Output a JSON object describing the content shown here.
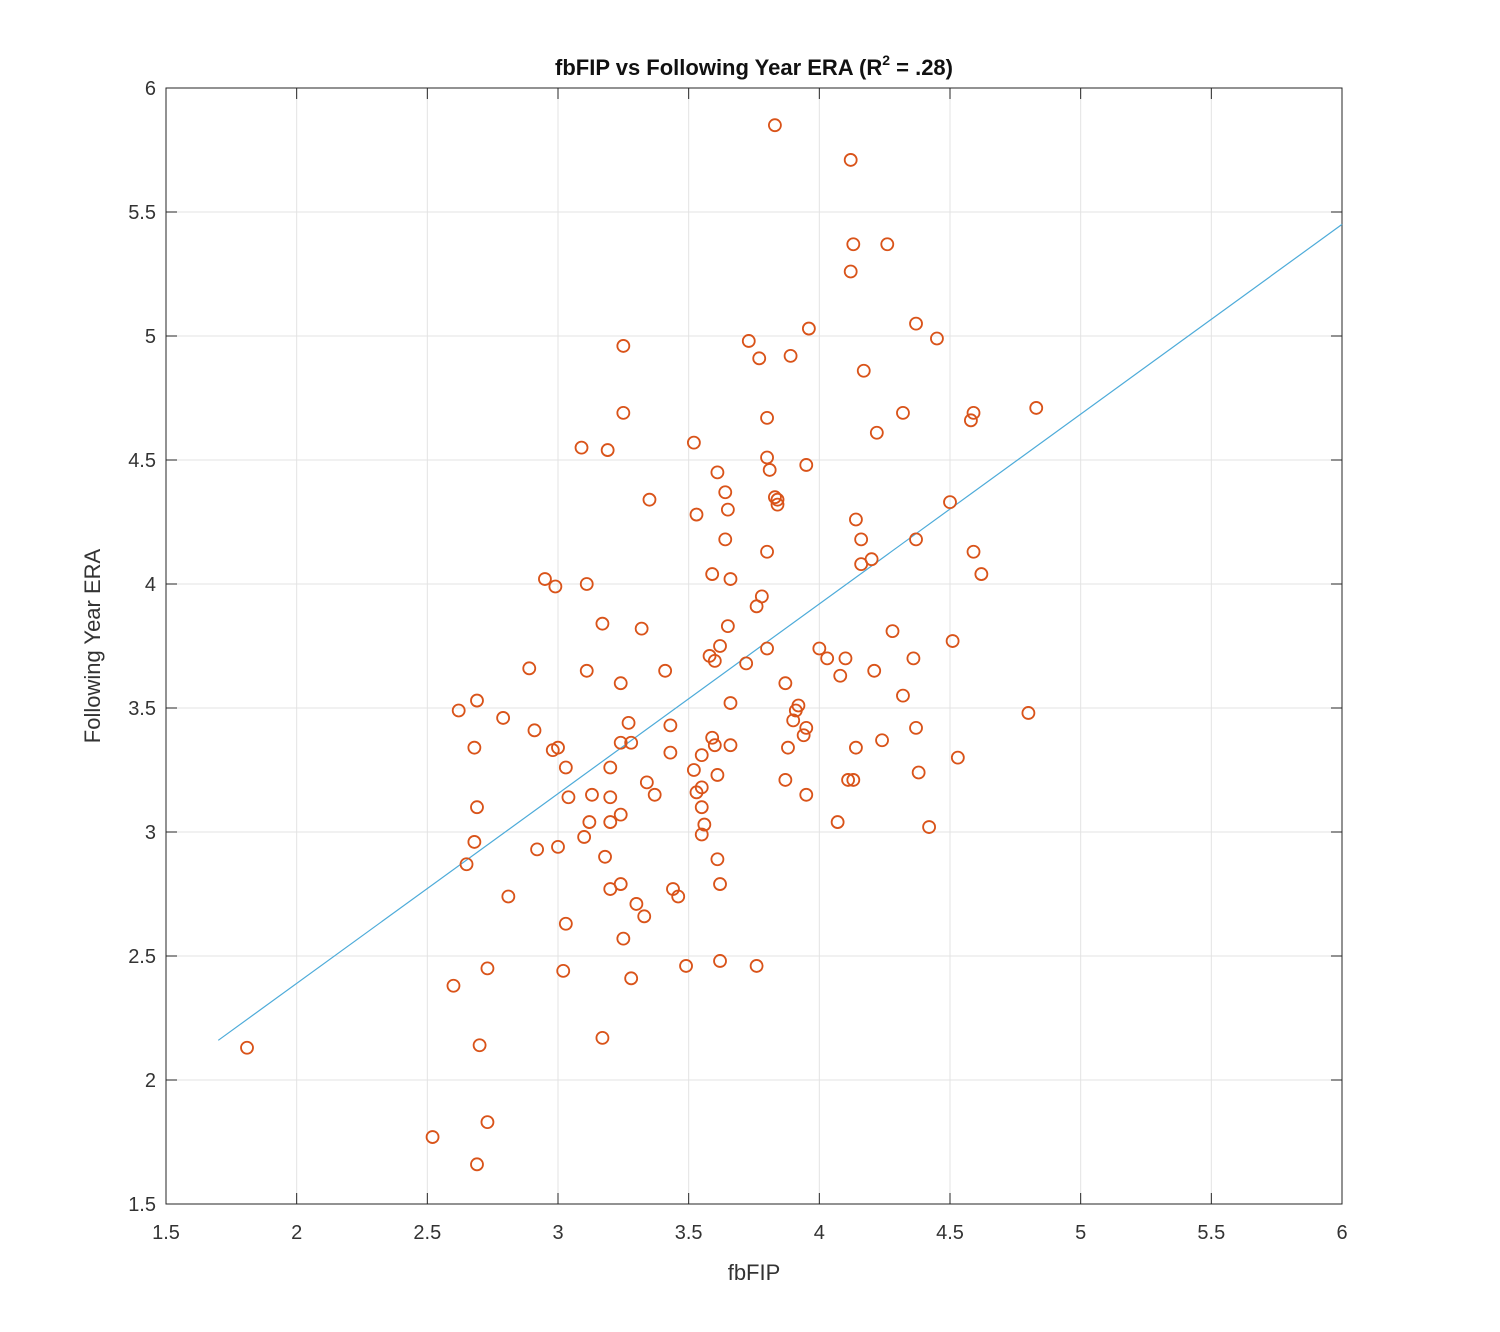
{
  "chart_data": {
    "type": "scatter",
    "title_main": "fbFIP vs Following Year ERA (R",
    "title_sup": "2",
    "title_tail": " = .28)",
    "xlabel": "fbFIP",
    "ylabel": "Following Year ERA",
    "xlim": [
      1.5,
      6
    ],
    "ylim": [
      1.5,
      6
    ],
    "xticks": [
      "1.5",
      "2",
      "2.5",
      "3",
      "3.5",
      "4",
      "4.5",
      "5",
      "5.5",
      "6"
    ],
    "yticks": [
      "1.5",
      "2",
      "2.5",
      "3",
      "3.5",
      "4",
      "4.5",
      "5",
      "5.5",
      "6"
    ],
    "grid": true,
    "marker_color": "#d95319",
    "line_color": "#4dabd9",
    "fit_line": {
      "x": [
        1.7,
        6.0
      ],
      "y": [
        2.16,
        5.45
      ]
    },
    "points": [
      [
        1.81,
        2.13
      ],
      [
        2.52,
        1.77
      ],
      [
        2.6,
        2.38
      ],
      [
        2.62,
        3.49
      ],
      [
        2.65,
        2.87
      ],
      [
        2.68,
        3.34
      ],
      [
        2.68,
        2.96
      ],
      [
        2.69,
        3.53
      ],
      [
        2.69,
        3.1
      ],
      [
        2.69,
        1.66
      ],
      [
        2.7,
        2.14
      ],
      [
        2.73,
        2.45
      ],
      [
        2.73,
        1.83
      ],
      [
        2.79,
        3.46
      ],
      [
        2.81,
        2.74
      ],
      [
        2.89,
        3.66
      ],
      [
        2.91,
        3.41
      ],
      [
        2.92,
        2.93
      ],
      [
        2.95,
        4.02
      ],
      [
        2.98,
        3.33
      ],
      [
        2.99,
        3.99
      ],
      [
        3.0,
        3.34
      ],
      [
        3.0,
        2.94
      ],
      [
        3.02,
        2.44
      ],
      [
        3.03,
        3.26
      ],
      [
        3.03,
        2.63
      ],
      [
        3.04,
        3.14
      ],
      [
        3.09,
        4.55
      ],
      [
        3.1,
        2.98
      ],
      [
        3.11,
        4.0
      ],
      [
        3.11,
        3.65
      ],
      [
        3.12,
        3.04
      ],
      [
        3.13,
        3.15
      ],
      [
        3.17,
        3.84
      ],
      [
        3.17,
        2.17
      ],
      [
        3.18,
        2.9
      ],
      [
        3.19,
        4.54
      ],
      [
        3.2,
        3.26
      ],
      [
        3.2,
        3.14
      ],
      [
        3.2,
        3.04
      ],
      [
        3.2,
        2.77
      ],
      [
        3.24,
        3.6
      ],
      [
        3.24,
        3.36
      ],
      [
        3.24,
        3.07
      ],
      [
        3.24,
        2.79
      ],
      [
        3.25,
        4.96
      ],
      [
        3.25,
        4.69
      ],
      [
        3.25,
        2.57
      ],
      [
        3.27,
        3.44
      ],
      [
        3.28,
        3.36
      ],
      [
        3.28,
        2.41
      ],
      [
        3.3,
        2.71
      ],
      [
        3.32,
        3.82
      ],
      [
        3.33,
        2.66
      ],
      [
        3.34,
        3.2
      ],
      [
        3.35,
        4.34
      ],
      [
        3.37,
        3.15
      ],
      [
        3.41,
        3.65
      ],
      [
        3.43,
        3.43
      ],
      [
        3.43,
        3.32
      ],
      [
        3.44,
        2.77
      ],
      [
        3.46,
        2.74
      ],
      [
        3.49,
        2.46
      ],
      [
        3.52,
        4.57
      ],
      [
        3.52,
        3.25
      ],
      [
        3.53,
        4.28
      ],
      [
        3.53,
        3.16
      ],
      [
        3.55,
        3.31
      ],
      [
        3.55,
        3.18
      ],
      [
        3.55,
        3.1
      ],
      [
        3.56,
        3.03
      ],
      [
        3.55,
        2.99
      ],
      [
        3.58,
        3.71
      ],
      [
        3.59,
        4.04
      ],
      [
        3.59,
        3.38
      ],
      [
        3.6,
        3.69
      ],
      [
        3.6,
        3.35
      ],
      [
        3.61,
        4.45
      ],
      [
        3.61,
        3.23
      ],
      [
        3.61,
        2.89
      ],
      [
        3.62,
        3.75
      ],
      [
        3.62,
        2.79
      ],
      [
        3.62,
        2.48
      ],
      [
        3.64,
        4.37
      ],
      [
        3.64,
        4.18
      ],
      [
        3.65,
        4.3
      ],
      [
        3.65,
        3.83
      ],
      [
        3.66,
        4.02
      ],
      [
        3.66,
        3.52
      ],
      [
        3.66,
        3.35
      ],
      [
        3.72,
        3.68
      ],
      [
        3.73,
        4.98
      ],
      [
        3.76,
        3.91
      ],
      [
        3.76,
        2.46
      ],
      [
        3.77,
        4.91
      ],
      [
        3.78,
        3.95
      ],
      [
        3.8,
        4.67
      ],
      [
        3.8,
        4.51
      ],
      [
        3.8,
        4.13
      ],
      [
        3.8,
        3.74
      ],
      [
        3.81,
        4.46
      ],
      [
        3.83,
        5.85
      ],
      [
        3.83,
        4.35
      ],
      [
        3.84,
        4.32
      ],
      [
        3.84,
        4.34
      ],
      [
        3.87,
        3.6
      ],
      [
        3.87,
        3.21
      ],
      [
        3.88,
        3.34
      ],
      [
        3.89,
        4.92
      ],
      [
        3.9,
        3.45
      ],
      [
        3.91,
        3.49
      ],
      [
        3.92,
        3.51
      ],
      [
        3.94,
        3.39
      ],
      [
        3.95,
        4.48
      ],
      [
        3.95,
        3.42
      ],
      [
        3.95,
        3.15
      ],
      [
        3.96,
        5.03
      ],
      [
        4.0,
        3.74
      ],
      [
        4.03,
        3.7
      ],
      [
        4.07,
        3.04
      ],
      [
        4.08,
        3.63
      ],
      [
        4.1,
        3.7
      ],
      [
        4.11,
        3.21
      ],
      [
        4.12,
        5.71
      ],
      [
        4.12,
        5.26
      ],
      [
        4.13,
        5.37
      ],
      [
        4.13,
        3.21
      ],
      [
        4.14,
        4.26
      ],
      [
        4.14,
        3.34
      ],
      [
        4.16,
        4.18
      ],
      [
        4.16,
        4.08
      ],
      [
        4.17,
        4.86
      ],
      [
        4.2,
        4.1
      ],
      [
        4.21,
        3.65
      ],
      [
        4.22,
        4.61
      ],
      [
        4.24,
        3.37
      ],
      [
        4.26,
        5.37
      ],
      [
        4.28,
        3.81
      ],
      [
        4.32,
        4.69
      ],
      [
        4.32,
        3.55
      ],
      [
        4.36,
        3.7
      ],
      [
        4.37,
        5.05
      ],
      [
        4.37,
        4.18
      ],
      [
        4.37,
        3.42
      ],
      [
        4.38,
        3.24
      ],
      [
        4.42,
        3.02
      ],
      [
        4.45,
        4.99
      ],
      [
        4.5,
        4.33
      ],
      [
        4.51,
        3.77
      ],
      [
        4.53,
        3.3
      ],
      [
        4.58,
        4.66
      ],
      [
        4.59,
        4.69
      ],
      [
        4.59,
        4.13
      ],
      [
        4.62,
        4.04
      ],
      [
        4.8,
        3.48
      ],
      [
        4.83,
        4.71
      ]
    ]
  }
}
